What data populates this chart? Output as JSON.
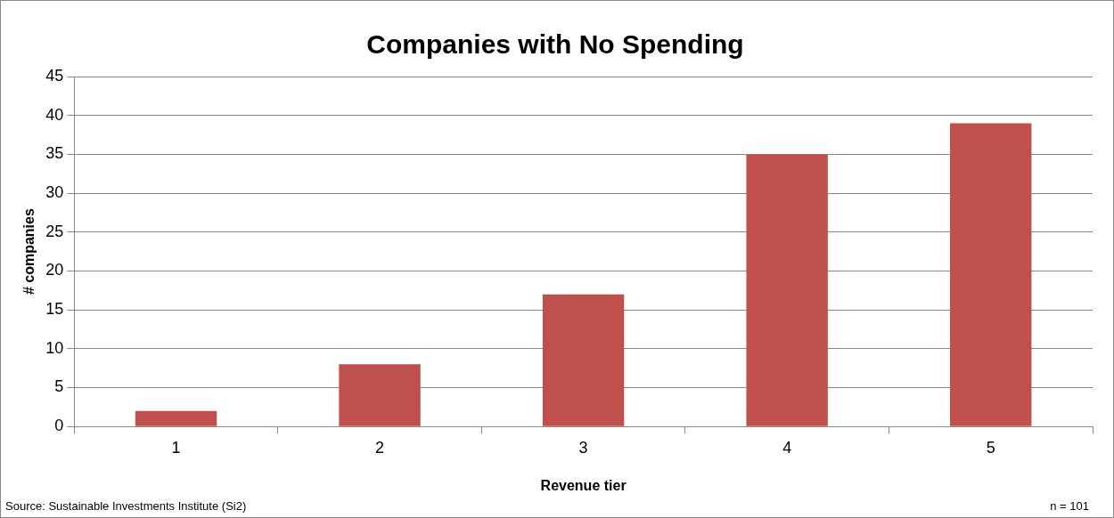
{
  "chart_data": {
    "type": "bar",
    "title": "Companies with No Spending",
    "xlabel": "Revenue tier",
    "ylabel": "# companies",
    "categories": [
      "1",
      "2",
      "3",
      "4",
      "5"
    ],
    "values": [
      2,
      8,
      17,
      35,
      39
    ],
    "color": "#c0504d",
    "ylim": [
      0,
      45
    ],
    "yticks": [
      0,
      5,
      10,
      15,
      20,
      25,
      30,
      35,
      40,
      45
    ],
    "grid": "y",
    "legend": false,
    "annotations": [
      "Source: Sustainable Investments Institute (Si2)",
      "n = 101"
    ]
  }
}
